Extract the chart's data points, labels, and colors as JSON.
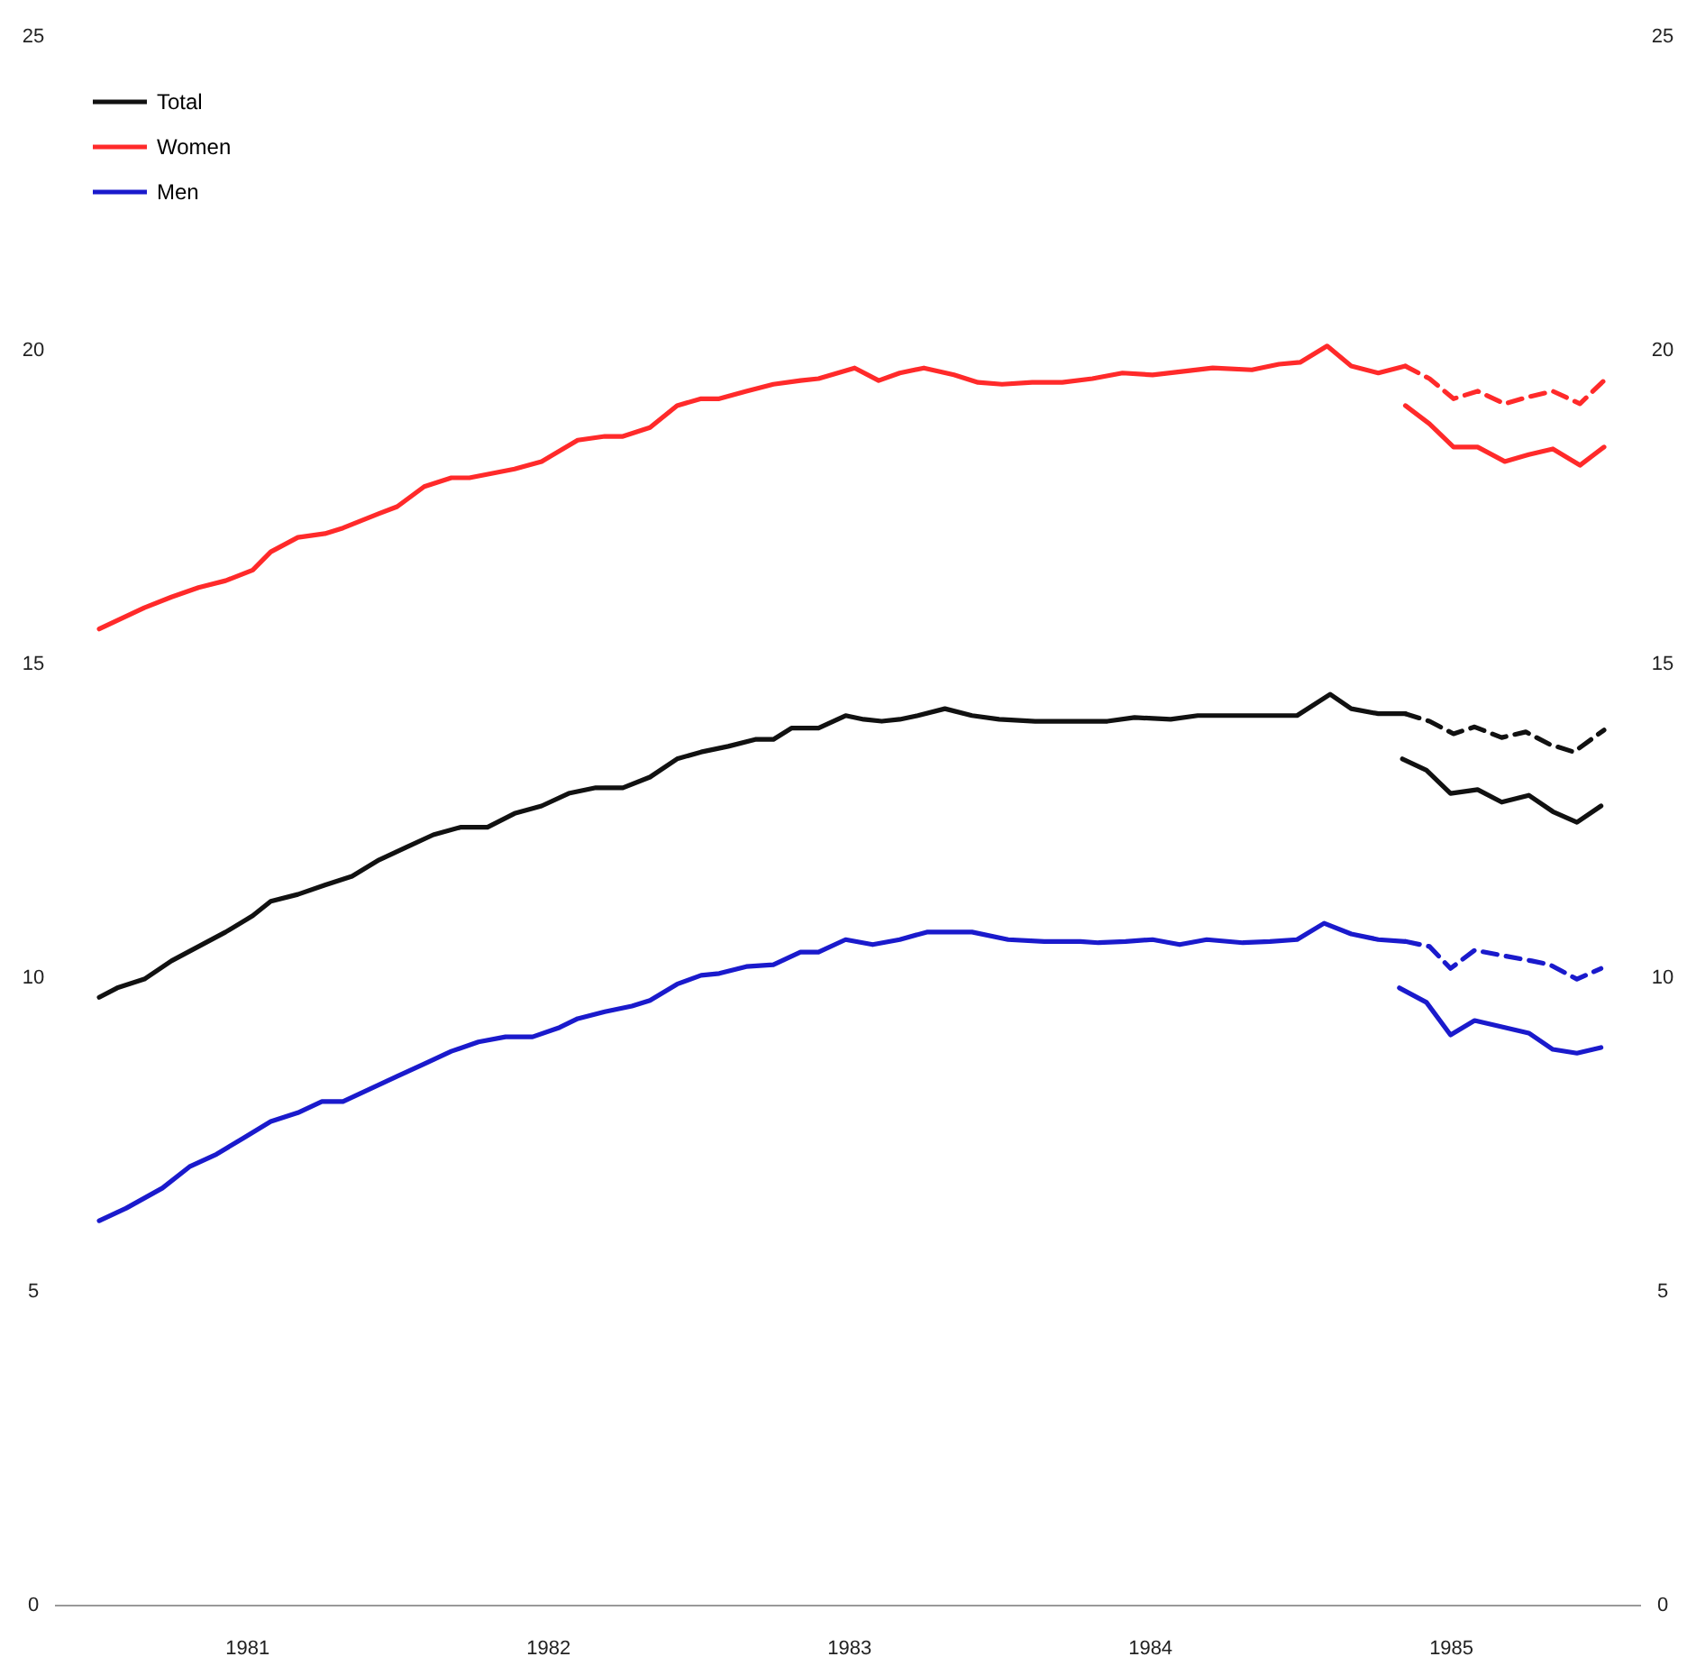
{
  "chart_data": {
    "type": "line",
    "xlim": [
      1980.36,
      1985.63
    ],
    "xticks": [
      1981,
      1982,
      1983,
      1984,
      1985
    ],
    "ylim": [
      0,
      25
    ],
    "yticks": [
      0,
      5,
      10,
      15,
      20,
      25
    ],
    "y2lim": [
      0,
      25
    ],
    "y2ticks": [
      0,
      5,
      10,
      15,
      20,
      25
    ],
    "grid": false,
    "legend": "top left",
    "series": [
      {
        "name": "Total",
        "color": "#111111",
        "x": [
          1980.51,
          1980.57,
          1980.66,
          1980.75,
          1980.84,
          1980.93,
          1981.02,
          1981.08,
          1981.17,
          1981.26,
          1981.35,
          1981.44,
          1981.53,
          1981.62,
          1981.71,
          1981.8,
          1981.89,
          1981.98,
          1982.07,
          1982.16,
          1982.25,
          1982.34,
          1982.43,
          1982.51,
          1982.6,
          1982.69,
          1982.75,
          1982.81,
          1982.9,
          1982.99,
          1983.05,
          1983.11,
          1983.17,
          1983.23,
          1983.32,
          1983.41,
          1983.5,
          1983.62,
          1983.74,
          1983.86,
          1983.95,
          1984.07,
          1984.16,
          1984.25,
          1984.37,
          1984.49,
          1984.6,
          1984.67,
          1984.76,
          1984.85
        ],
        "values": [
          9.68,
          9.83,
          9.97,
          10.26,
          10.49,
          10.72,
          10.98,
          11.21,
          11.32,
          11.47,
          11.61,
          11.87,
          12.07,
          12.27,
          12.39,
          12.39,
          12.61,
          12.73,
          12.93,
          13.02,
          13.02,
          13.19,
          13.48,
          13.59,
          13.68,
          13.79,
          13.79,
          13.97,
          13.97,
          14.17,
          14.11,
          14.08,
          14.11,
          14.17,
          14.28,
          14.17,
          14.11,
          14.08,
          14.08,
          14.08,
          14.14,
          14.11,
          14.17,
          14.17,
          14.17,
          14.17,
          14.51,
          14.28,
          14.2,
          14.2
        ]
      },
      {
        "name": "Women",
        "color": "#ff2a2a",
        "x": [
          1980.51,
          1980.66,
          1980.75,
          1980.84,
          1980.93,
          1981.02,
          1981.08,
          1981.17,
          1981.26,
          1981.32,
          1981.44,
          1981.5,
          1981.59,
          1981.68,
          1981.74,
          1981.89,
          1981.98,
          1982.1,
          1982.19,
          1982.25,
          1982.34,
          1982.43,
          1982.51,
          1982.57,
          1982.66,
          1982.75,
          1982.84,
          1982.9,
          1983.02,
          1983.1,
          1983.17,
          1983.25,
          1983.35,
          1983.43,
          1983.51,
          1983.61,
          1983.71,
          1983.81,
          1983.91,
          1984.01,
          1984.12,
          1984.21,
          1984.34,
          1984.43,
          1984.5,
          1984.59,
          1984.67,
          1984.76,
          1984.85
        ],
        "values": [
          15.55,
          15.89,
          16.06,
          16.21,
          16.32,
          16.49,
          16.78,
          17.01,
          17.07,
          17.16,
          17.39,
          17.5,
          17.82,
          17.96,
          17.96,
          18.1,
          18.22,
          18.56,
          18.62,
          18.62,
          18.76,
          19.11,
          19.22,
          19.22,
          19.34,
          19.45,
          19.51,
          19.54,
          19.71,
          19.51,
          19.63,
          19.71,
          19.6,
          19.48,
          19.45,
          19.48,
          19.48,
          19.54,
          19.63,
          19.6,
          19.66,
          19.71,
          19.68,
          19.77,
          19.8,
          20.06,
          19.74,
          19.63,
          19.74
        ]
      },
      {
        "name": "Men",
        "color": "#1a1acc",
        "x": [
          1980.51,
          1980.6,
          1980.72,
          1980.81,
          1980.9,
          1980.99,
          1981.08,
          1981.17,
          1981.25,
          1981.32,
          1981.41,
          1981.5,
          1981.59,
          1981.68,
          1981.77,
          1981.86,
          1981.95,
          1982.04,
          1982.1,
          1982.19,
          1982.28,
          1982.34,
          1982.43,
          1982.51,
          1982.57,
          1982.66,
          1982.75,
          1982.84,
          1982.9,
          1982.99,
          1983.08,
          1983.17,
          1983.26,
          1983.41,
          1983.53,
          1983.65,
          1983.77,
          1983.83,
          1983.92,
          1984.01,
          1984.1,
          1984.19,
          1984.31,
          1984.4,
          1984.49,
          1984.58,
          1984.67,
          1984.76,
          1984.85
        ],
        "values": [
          6.12,
          6.32,
          6.64,
          6.98,
          7.18,
          7.44,
          7.7,
          7.84,
          8.02,
          8.02,
          8.22,
          8.42,
          8.62,
          8.82,
          8.97,
          9.05,
          9.05,
          9.2,
          9.34,
          9.45,
          9.54,
          9.63,
          9.89,
          10.03,
          10.06,
          10.17,
          10.2,
          10.4,
          10.4,
          10.6,
          10.52,
          10.6,
          10.72,
          10.72,
          10.6,
          10.57,
          10.57,
          10.55,
          10.57,
          10.6,
          10.52,
          10.6,
          10.55,
          10.57,
          10.6,
          10.86,
          10.69,
          10.6,
          10.57
        ]
      },
      {
        "color": "#111111",
        "line_style": "dashed",
        "x": [
          1984.85,
          1984.93,
          1985.01,
          1985.08,
          1985.17,
          1985.25,
          1985.33,
          1985.41,
          1985.51
        ],
        "values": [
          14.2,
          14.08,
          13.88,
          13.99,
          13.82,
          13.91,
          13.71,
          13.59,
          13.94
        ]
      },
      {
        "color": "#111111",
        "x": [
          1984.84,
          1984.92,
          1985.0,
          1985.09,
          1985.17,
          1985.26,
          1985.34,
          1985.42,
          1985.5
        ],
        "values": [
          13.48,
          13.3,
          12.93,
          12.99,
          12.79,
          12.9,
          12.64,
          12.47,
          12.73
        ]
      },
      {
        "color": "#ff2a2a",
        "line_style": "dashed",
        "x": [
          1984.85,
          1984.93,
          1985.01,
          1985.09,
          1985.18,
          1985.26,
          1985.34,
          1985.43,
          1985.51
        ],
        "values": [
          19.74,
          19.54,
          19.22,
          19.34,
          19.14,
          19.25,
          19.34,
          19.14,
          19.51
        ]
      },
      {
        "color": "#ff2a2a",
        "x": [
          1984.85,
          1984.93,
          1985.01,
          1985.09,
          1985.18,
          1985.26,
          1985.34,
          1985.43,
          1985.51
        ],
        "values": [
          19.11,
          18.82,
          18.45,
          18.45,
          18.22,
          18.33,
          18.42,
          18.16,
          18.45
        ]
      },
      {
        "color": "#1a1acc",
        "line_style": "dashed",
        "x": [
          1984.85,
          1984.93,
          1985.0,
          1985.08,
          1985.18,
          1985.27,
          1985.33,
          1985.42,
          1985.5
        ],
        "values": [
          10.57,
          10.49,
          10.14,
          10.43,
          10.34,
          10.26,
          10.2,
          9.97,
          10.14
        ]
      },
      {
        "color": "#1a1acc",
        "x": [
          1984.83,
          1984.92,
          1985.0,
          1985.08,
          1985.18,
          1985.26,
          1985.34,
          1985.42,
          1985.5
        ],
        "values": [
          9.83,
          9.6,
          9.08,
          9.31,
          9.2,
          9.11,
          8.85,
          8.79,
          8.88
        ]
      }
    ]
  }
}
